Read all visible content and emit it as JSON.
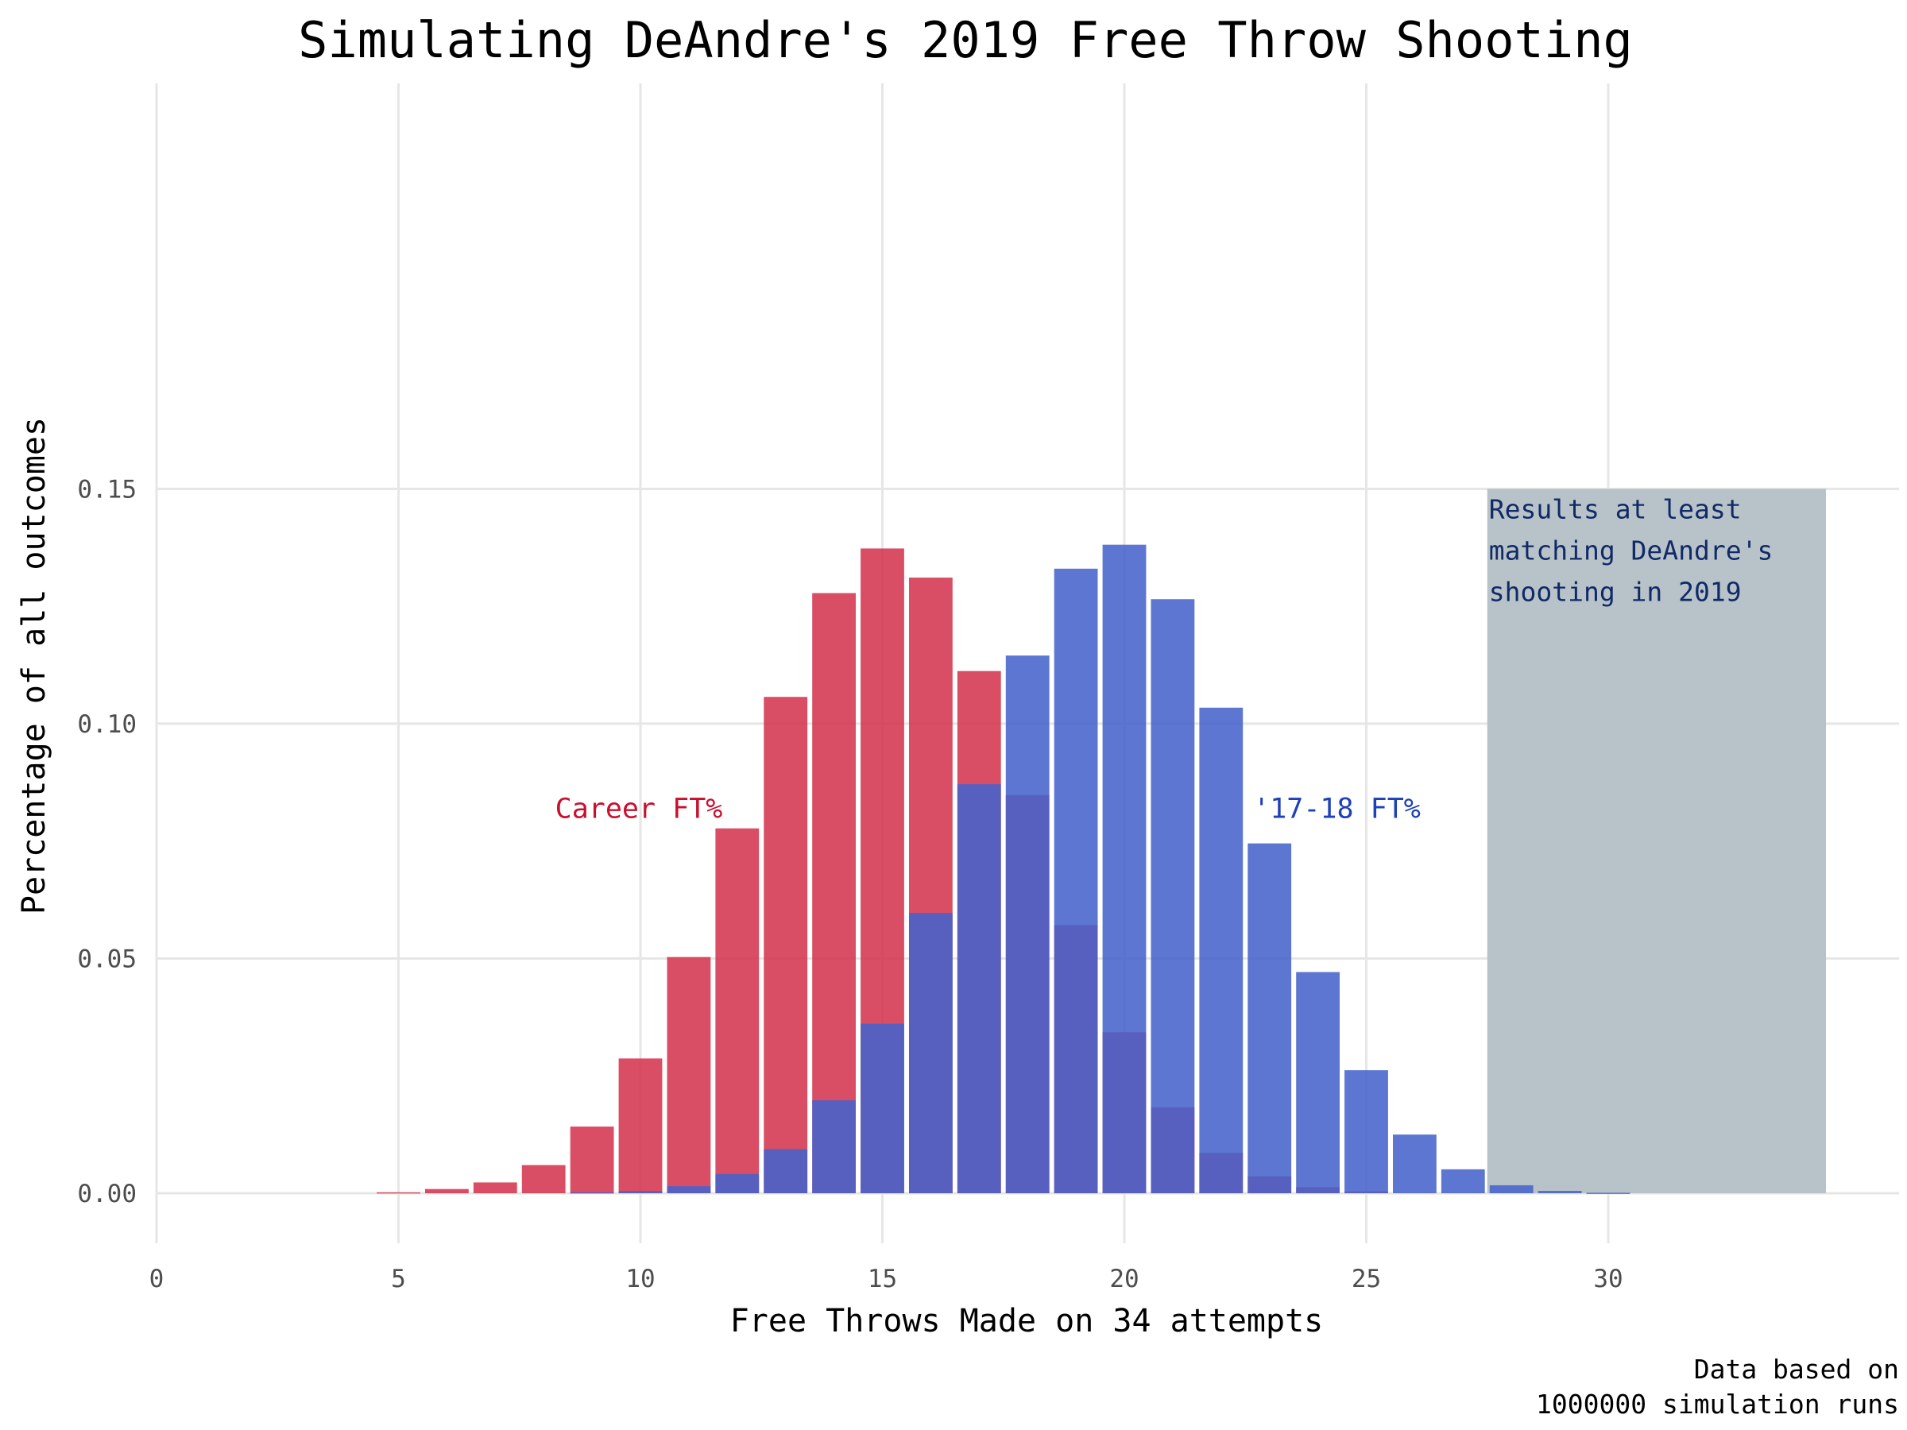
{
  "chart_data": {
    "type": "bar",
    "title": "Simulating DeAndre's 2019 Free Throw Shooting",
    "xlabel": "Free Throws Made on 34 attempts",
    "ylabel": "Percentage of all outcomes",
    "xlim": [
      0,
      34.5
    ],
    "ylim": [
      0,
      0.15
    ],
    "x_ticks": [
      "0",
      "5",
      "10",
      "15",
      "20",
      "25",
      "30"
    ],
    "x_tick_values": [
      0,
      5,
      10,
      15,
      20,
      25,
      30
    ],
    "y_ticks": [
      "0.00",
      "0.05",
      "0.10",
      "0.15"
    ],
    "y_tick_values": [
      0,
      0.05,
      0.1,
      0.15
    ],
    "grid": true,
    "caption_lines": [
      "Data based on",
      "1000000 simulation runs"
    ],
    "highlight_region": {
      "x_start": 27.5,
      "x_end": 34.5,
      "color": "#b8c2c9",
      "lines": [
        "Results at least",
        "matching DeAndre's",
        "shooting in 2019"
      ]
    },
    "series": [
      {
        "name": "Career FT%",
        "color": "#d4354f",
        "label_x": 10,
        "label_y": 0.082,
        "x": [
          5,
          6,
          7,
          8,
          9,
          10,
          11,
          12,
          13,
          14,
          15,
          16,
          17,
          18,
          19,
          20,
          21,
          22,
          23,
          24,
          25
        ],
        "values": [
          0.0002,
          0.0009,
          0.0023,
          0.006,
          0.0142,
          0.0287,
          0.0503,
          0.0777,
          0.1057,
          0.1278,
          0.1373,
          0.1311,
          0.1112,
          0.0848,
          0.0571,
          0.0343,
          0.0183,
          0.0086,
          0.0036,
          0.0013,
          0.0004
        ]
      },
      {
        "name": "'17-18 FT%",
        "color": "#4563cc",
        "label_x": 25,
        "label_y": 0.082,
        "x": [
          9,
          10,
          11,
          12,
          13,
          14,
          15,
          16,
          17,
          18,
          19,
          20,
          21,
          22,
          23,
          24,
          25,
          26,
          27,
          28,
          29,
          30
        ],
        "values": [
          0.0002,
          0.0005,
          0.0015,
          0.0041,
          0.0094,
          0.0198,
          0.0361,
          0.0597,
          0.0871,
          0.1145,
          0.133,
          0.1381,
          0.1265,
          0.1034,
          0.0745,
          0.0471,
          0.0262,
          0.0125,
          0.0051,
          0.0017,
          0.0005,
          0.0001
        ]
      }
    ]
  }
}
